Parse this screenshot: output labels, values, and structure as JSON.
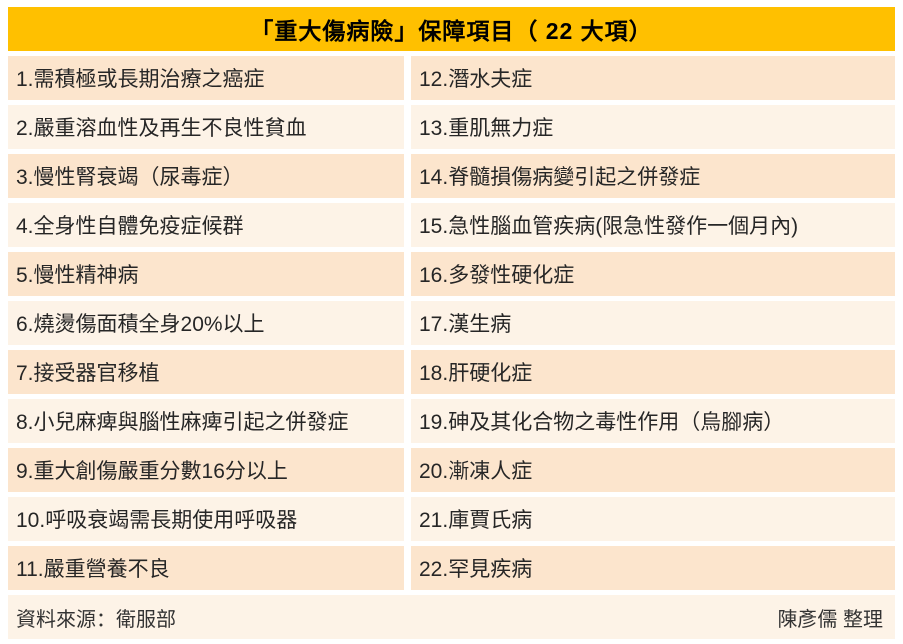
{
  "header": {
    "title": "「重大傷病險」保障項目（ 22 大項）"
  },
  "table": {
    "left_items": [
      "1.需積極或長期治療之癌症",
      "2.嚴重溶血性及再生不良性貧血",
      "3.慢性腎衰竭（尿毒症）",
      "4.全身性自體免疫症候群",
      "5.慢性精神病",
      "6.燒燙傷面積全身20%以上",
      "7.接受器官移植",
      "8.小兒麻痺與腦性麻痺引起之併發症",
      "9.重大創傷嚴重分數16分以上",
      "10.呼吸衰竭需長期使用呼吸器",
      "11.嚴重營養不良"
    ],
    "right_items": [
      "12.潛水夫症",
      "13.重肌無力症",
      "14.脊髓損傷病變引起之併發症",
      "15.急性腦血管疾病(限急性發作一個月內)",
      "16.多發性硬化症",
      "17.漢生病",
      "18.肝硬化症",
      "19.砷及其化合物之毒性作用（烏腳病）",
      "20.漸凍人症",
      "21.庫賈氏病",
      "22.罕見疾病"
    ]
  },
  "footer": {
    "source": "資料來源：衛服部",
    "credit": "陳彥儒  整理"
  },
  "colors": {
    "header_bg": "#FFC000",
    "row_dark": "#FCE5CD",
    "row_light": "#FDF3E7",
    "text": "#262626",
    "page_bg": "#FFFFFF"
  },
  "chart_data": {
    "type": "table",
    "title": "「重大傷病險」保障項目（ 22 大項）",
    "rows": [
      [
        "1.需積極或長期治療之癌症",
        "12.潛水夫症"
      ],
      [
        "2.嚴重溶血性及再生不良性貧血",
        "13.重肌無力症"
      ],
      [
        "3.慢性腎衰竭（尿毒症）",
        "14.脊髓損傷病變引起之併發症"
      ],
      [
        "4.全身性自體免疫症候群",
        "15.急性腦血管疾病(限急性發作一個月內)"
      ],
      [
        "5.慢性精神病",
        "16.多發性硬化症"
      ],
      [
        "6.燒燙傷面積全身20%以上",
        "17.漢生病"
      ],
      [
        "7.接受器官移植",
        "18.肝硬化症"
      ],
      [
        "8.小兒麻痺與腦性麻痺引起之併發症",
        "19.砷及其化合物之毒性作用（烏腳病）"
      ],
      [
        "9.重大創傷嚴重分數16分以上",
        "20.漸凍人症"
      ],
      [
        "10.呼吸衰竭需長期使用呼吸器",
        "21.庫賈氏病"
      ],
      [
        "11.嚴重營養不良",
        "22.罕見疾病"
      ]
    ],
    "source": "資料來源：衛服部",
    "credit": "陳彥儒  整理",
    "layout_hints": {
      "columns": 2,
      "row_alt_colors": [
        "#FCE5CD",
        "#FDF3E7"
      ],
      "header_bg": "#FFC000",
      "grid": "white gutters between cells"
    }
  }
}
